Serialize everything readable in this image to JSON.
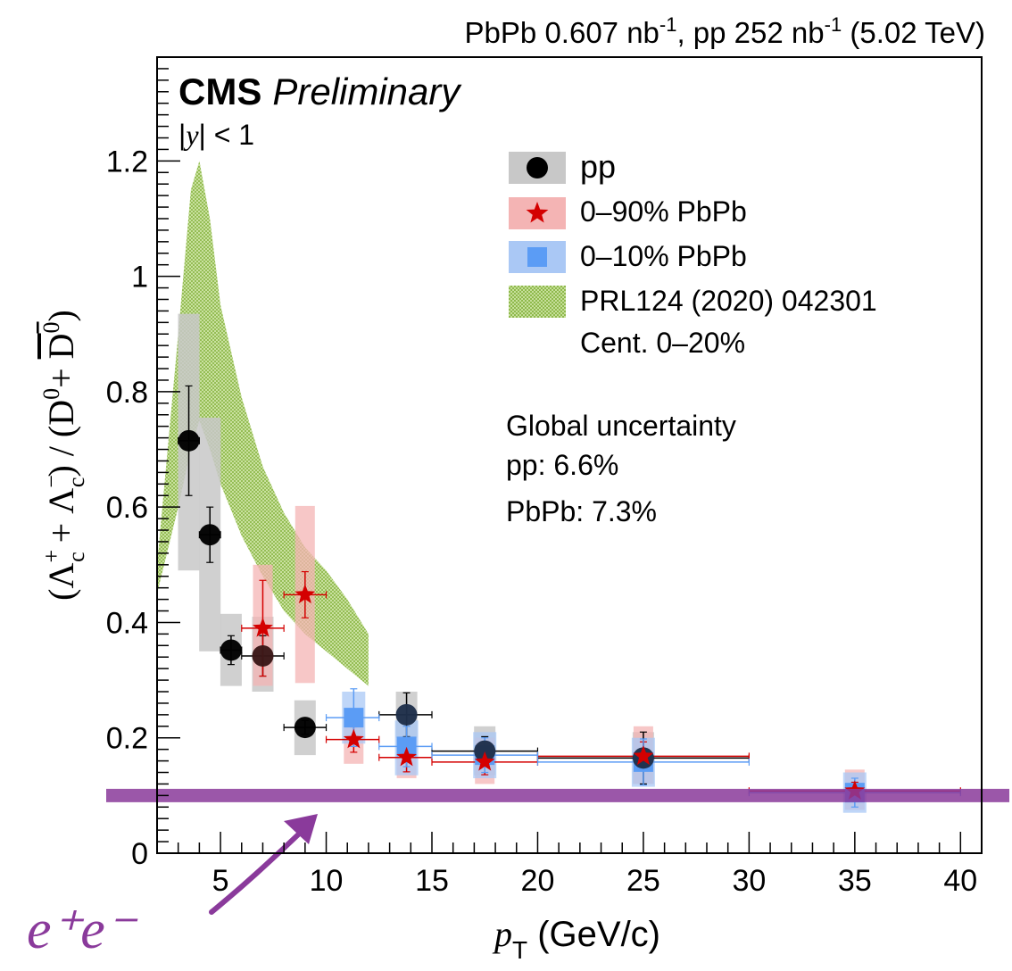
{
  "chart_data": {
    "type": "scatter",
    "header": "PbPb 0.607 nb⁻¹, pp 252 nb⁻¹ (5.02 TeV)",
    "experiment": "CMS",
    "status": "Preliminary",
    "rapidity_cut": "|y| < 1",
    "ylabel": "(Λ⁺_c + Λ⁻_c) / (D⁰ + D̅⁰)",
    "xlabel": "p_T (GeV/c)",
    "xlim": [
      2,
      41
    ],
    "ylim": [
      0,
      1.38
    ],
    "x_ticks": [
      5,
      10,
      15,
      20,
      25,
      30,
      35,
      40
    ],
    "y_ticks": [
      0,
      0.2,
      0.4,
      0.6,
      0.8,
      1,
      1.2
    ],
    "y_tick_labels": [
      "0",
      "0.2",
      "0.4",
      "0.6",
      "0.8",
      "1",
      "1.2"
    ],
    "legend_placement": "top-right",
    "global_uncertainty": {
      "title": "Global uncertainty",
      "pp": "pp: 6.6%",
      "pbpb": "PbPb: 7.3%"
    },
    "series": [
      {
        "name": "pp",
        "marker": "circle",
        "color": "#000000",
        "box_color": "#c8c8c8",
        "points": [
          {
            "x": 3.5,
            "xlo": 3.0,
            "xhi": 4.0,
            "y": 0.715,
            "stat": 0.095,
            "syslo": 0.49,
            "syshi": 0.935
          },
          {
            "x": 4.5,
            "xlo": 4.0,
            "xhi": 5.0,
            "y": 0.552,
            "stat": 0.048,
            "syslo": 0.35,
            "syshi": 0.755
          },
          {
            "x": 5.5,
            "xlo": 5.0,
            "xhi": 6.0,
            "y": 0.352,
            "stat": 0.025,
            "syslo": 0.29,
            "syshi": 0.415
          },
          {
            "x": 7.0,
            "xlo": 6.0,
            "xhi": 8.0,
            "y": 0.342,
            "stat": 0.035,
            "syslo": 0.28,
            "syshi": 0.41
          },
          {
            "x": 9.0,
            "xlo": 8.0,
            "xhi": 10.0,
            "y": 0.218,
            "stat": 0.012,
            "syslo": 0.17,
            "syshi": 0.265
          },
          {
            "x": 13.8,
            "xlo": 12.5,
            "xhi": 15.0,
            "y": 0.24,
            "stat": 0.038,
            "syslo": 0.2,
            "syshi": 0.28
          },
          {
            "x": 17.5,
            "xlo": 15.0,
            "xhi": 20.0,
            "y": 0.177,
            "stat": 0.025,
            "syslo": 0.135,
            "syshi": 0.22
          },
          {
            "x": 25.0,
            "xlo": 20.0,
            "xhi": 30.0,
            "y": 0.165,
            "stat": 0.045,
            "syslo": 0.12,
            "syshi": 0.21
          }
        ]
      },
      {
        "name": "0–90% PbPb",
        "marker": "star",
        "color": "#d40000",
        "box_color": "#f4b4b4",
        "points": [
          {
            "x": 7.0,
            "xlo": 6.0,
            "xhi": 8.0,
            "y": 0.39,
            "stat": 0.083,
            "syslo": 0.29,
            "syshi": 0.5
          },
          {
            "x": 9.0,
            "xlo": 8.0,
            "xhi": 10.0,
            "y": 0.448,
            "stat": 0.04,
            "syslo": 0.295,
            "syshi": 0.602
          },
          {
            "x": 11.3,
            "xlo": 10.0,
            "xhi": 12.5,
            "y": 0.197,
            "stat": 0.022,
            "syslo": 0.155,
            "syshi": 0.24
          },
          {
            "x": 13.8,
            "xlo": 12.5,
            "xhi": 15.0,
            "y": 0.166,
            "stat": 0.025,
            "syslo": 0.13,
            "syshi": 0.2
          },
          {
            "x": 17.5,
            "xlo": 15.0,
            "xhi": 20.0,
            "y": 0.158,
            "stat": 0.022,
            "syslo": 0.12,
            "syshi": 0.2
          },
          {
            "x": 25.0,
            "xlo": 20.0,
            "xhi": 30.0,
            "y": 0.168,
            "stat": 0.025,
            "syslo": 0.12,
            "syshi": 0.22
          },
          {
            "x": 35.0,
            "xlo": 30.0,
            "xhi": 40.0,
            "y": 0.108,
            "stat": 0.015,
            "syslo": 0.075,
            "syshi": 0.145
          }
        ]
      },
      {
        "name": "0–10% PbPb",
        "marker": "square",
        "color": "#5b9cf5",
        "box_color": "#aac8f5",
        "points": [
          {
            "x": 11.3,
            "xlo": 10.0,
            "xhi": 12.5,
            "y": 0.235,
            "stat": 0.05,
            "syslo": 0.19,
            "syshi": 0.28
          },
          {
            "x": 13.8,
            "xlo": 12.5,
            "xhi": 15.0,
            "y": 0.185,
            "stat": 0.035,
            "syslo": 0.135,
            "syshi": 0.23
          },
          {
            "x": 17.5,
            "xlo": 15.0,
            "xhi": 20.0,
            "y": 0.17,
            "stat": 0.03,
            "syslo": 0.13,
            "syshi": 0.21
          },
          {
            "x": 25.0,
            "xlo": 20.0,
            "xhi": 30.0,
            "y": 0.158,
            "stat": 0.04,
            "syslo": 0.115,
            "syshi": 0.2
          },
          {
            "x": 35.0,
            "xlo": 30.0,
            "xhi": 40.0,
            "y": 0.105,
            "stat": 0.025,
            "syslo": 0.07,
            "syshi": 0.14
          }
        ]
      }
    ],
    "model_band": {
      "name": "PRL124 (2020) 042301",
      "note": "Cent. 0–20%",
      "color": "#9cc35a",
      "x": [
        2,
        3,
        3.6,
        4,
        4.5,
        5,
        6,
        7,
        8,
        9,
        10,
        11,
        12
      ],
      "ylo": [
        0.45,
        0.6,
        0.7,
        0.75,
        0.7,
        0.64,
        0.55,
        0.48,
        0.42,
        0.38,
        0.35,
        0.32,
        0.29
      ],
      "yhi": [
        0.5,
        0.9,
        1.15,
        1.2,
        1.1,
        0.95,
        0.79,
        0.67,
        0.59,
        0.53,
        0.49,
        0.44,
        0.38
      ]
    },
    "annotation": {
      "text": "e⁺e⁻",
      "color": "#8a3a9b",
      "line_y": 0.1
    }
  }
}
